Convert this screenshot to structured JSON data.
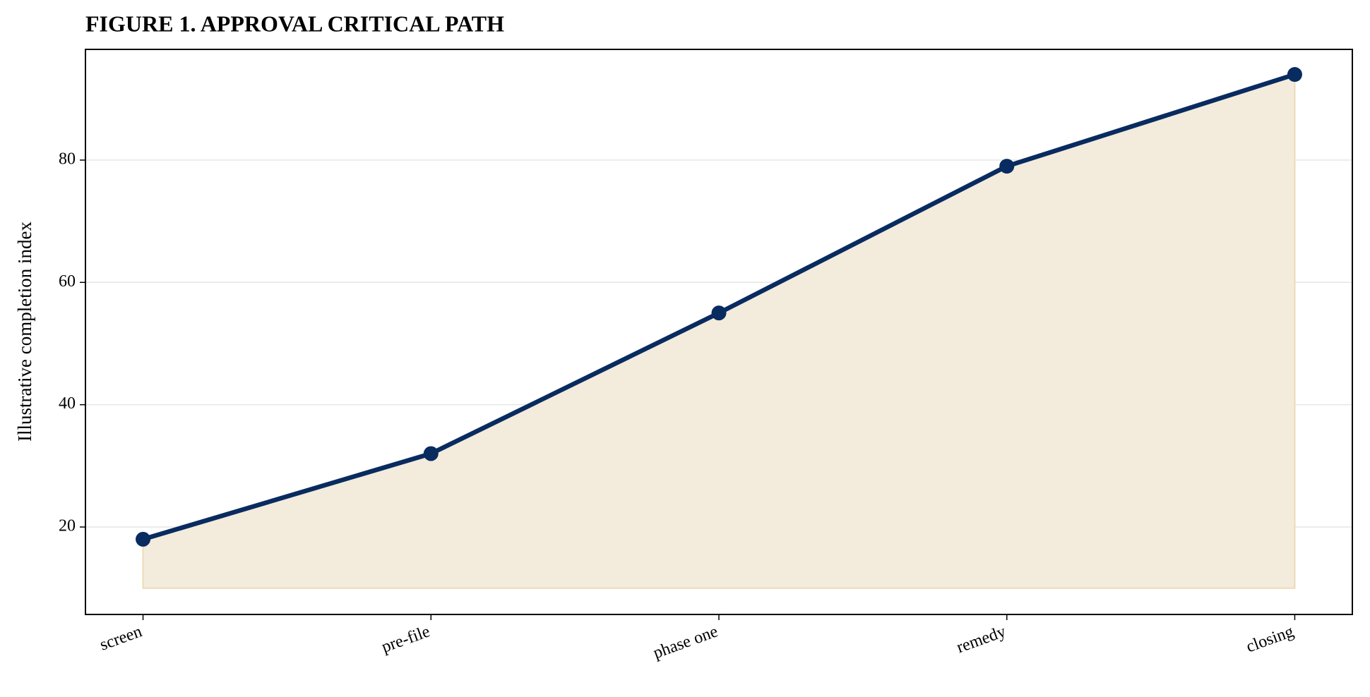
{
  "chart_data": {
    "type": "line",
    "title": "FIGURE 1. APPROVAL CRITICAL PATH",
    "y_label": "Illustrative completion index",
    "categories": [
      "screen",
      "pre-file",
      "phase one",
      "remedy",
      "closing"
    ],
    "series": [
      {
        "name": "Illustrative completion index",
        "color": "#082b60",
        "values": [
          18,
          32,
          55,
          79,
          94
        ]
      }
    ],
    "fill_color": "#f3ebdc",
    "area_baseline": 10,
    "ylim": [
      5.7,
      98.1
    ],
    "yticks": [
      20,
      40,
      60,
      80
    ],
    "grid": true
  }
}
